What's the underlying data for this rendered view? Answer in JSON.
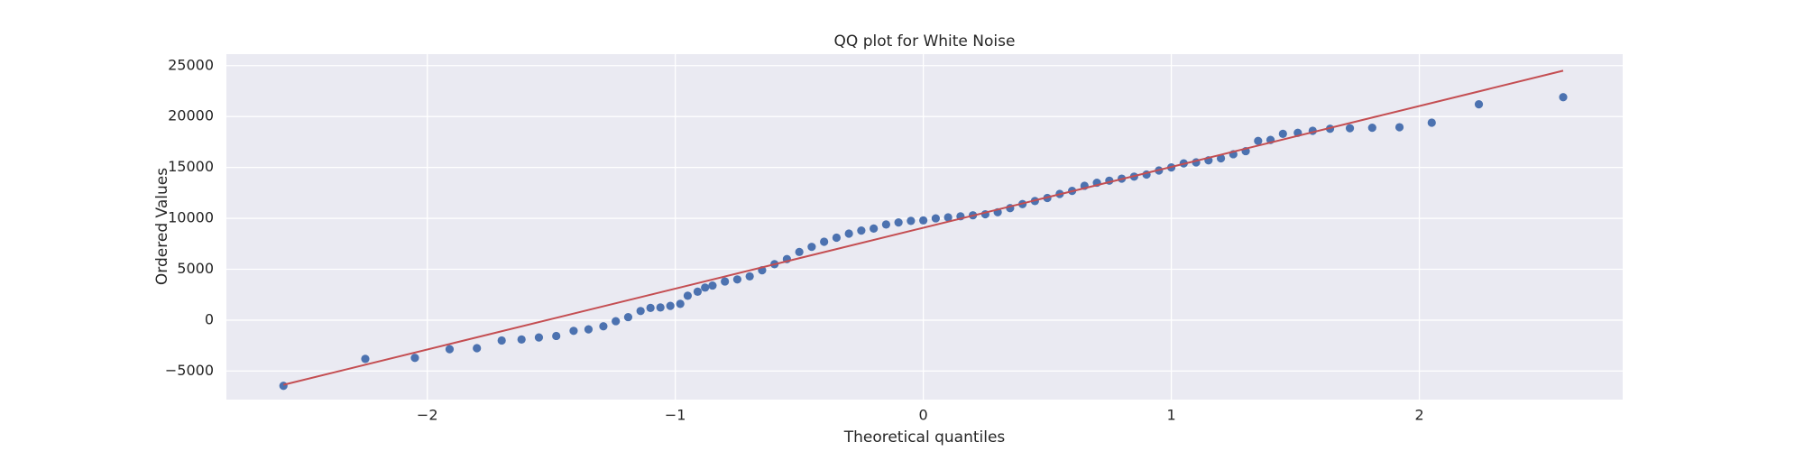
{
  "chart_data": {
    "type": "scatter",
    "title": "QQ plot for White Noise",
    "x_label": "Theoretical quantiles",
    "y_label": "Ordered Values",
    "xlim": [
      -2.81,
      2.82
    ],
    "ylim": [
      -7800,
      26130
    ],
    "xticks": [
      {
        "value": -2,
        "label": "−2"
      },
      {
        "value": -1,
        "label": "−1"
      },
      0,
      1,
      2
    ],
    "yticks": [
      {
        "value": -5000,
        "label": "−5000"
      },
      0,
      5000,
      10000,
      15000,
      20000,
      25000
    ],
    "grid": true,
    "background": "#eaeaf2",
    "points": {
      "color": "#4c72b0",
      "x": [
        -2.58,
        -2.25,
        -2.05,
        -1.91,
        -1.8,
        -1.7,
        -1.62,
        -1.55,
        -1.48,
        -1.41,
        -1.35,
        -1.29,
        -1.24,
        -1.19,
        -1.14,
        -1.1,
        -1.06,
        -1.02,
        -0.98,
        -0.95,
        -0.91,
        -0.88,
        -0.85,
        -0.8,
        -0.75,
        -0.7,
        -0.65,
        -0.6,
        -0.55,
        -0.5,
        -0.45,
        -0.4,
        -0.35,
        -0.3,
        -0.25,
        -0.2,
        -0.15,
        -0.1,
        -0.05,
        0.0,
        0.05,
        0.1,
        0.15,
        0.2,
        0.25,
        0.3,
        0.35,
        0.4,
        0.45,
        0.5,
        0.55,
        0.6,
        0.65,
        0.7,
        0.75,
        0.8,
        0.85,
        0.9,
        0.95,
        1.0,
        1.05,
        1.1,
        1.15,
        1.2,
        1.25,
        1.3,
        1.35,
        1.4,
        1.45,
        1.51,
        1.57,
        1.64,
        1.72,
        1.81,
        1.92,
        2.05,
        2.24,
        2.58
      ],
      "y": [
        -6450,
        -3800,
        -3700,
        -2850,
        -2750,
        -2000,
        -1900,
        -1700,
        -1550,
        -1050,
        -900,
        -600,
        -100,
        300,
        900,
        1200,
        1250,
        1400,
        1600,
        2400,
        2800,
        3200,
        3400,
        3800,
        4000,
        4300,
        4900,
        5500,
        6000,
        6700,
        7200,
        7700,
        8100,
        8500,
        8800,
        9000,
        9400,
        9600,
        9750,
        9800,
        10000,
        10100,
        10200,
        10300,
        10400,
        10600,
        11000,
        11400,
        11700,
        12000,
        12400,
        12700,
        13200,
        13500,
        13700,
        13900,
        14100,
        14300,
        14700,
        15000,
        15400,
        15500,
        15700,
        15900,
        16300,
        16600,
        17600,
        17700,
        18300,
        18400,
        18600,
        18800,
        18850,
        18900,
        18950,
        19400,
        21200,
        21900
      ]
    },
    "fit_line": {
      "color": "#c44e52",
      "x": [
        -2.58,
        2.58
      ],
      "y": [
        -6350,
        24500
      ]
    }
  }
}
